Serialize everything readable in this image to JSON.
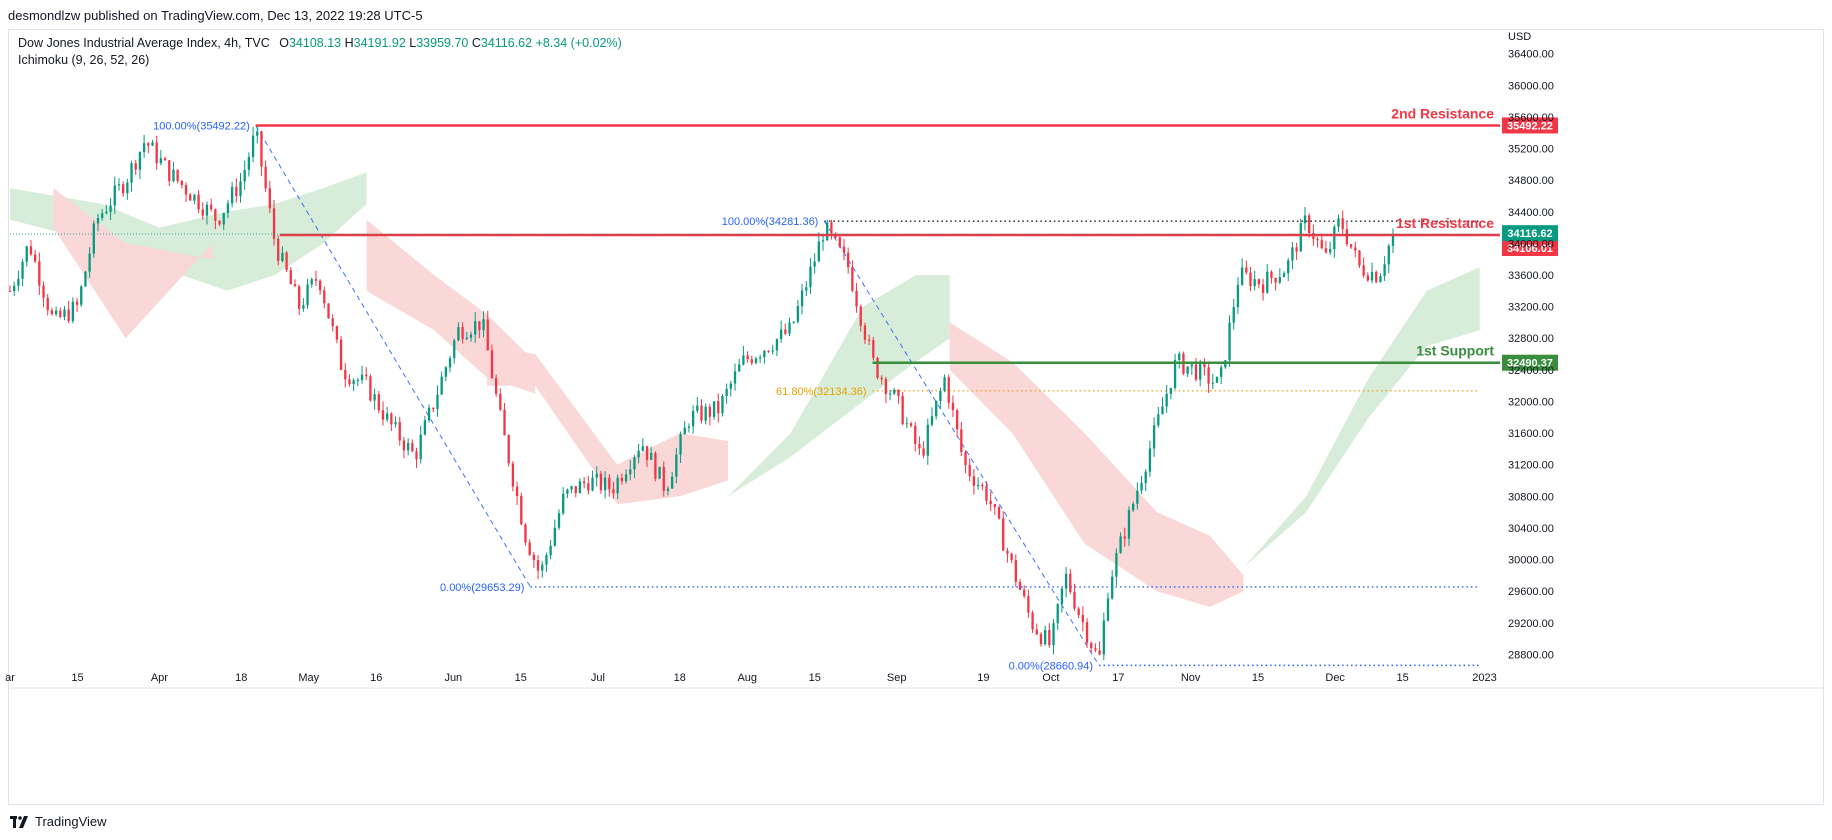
{
  "header": {
    "published": "desmondlzw published on TradingView.com, Dec 13, 2022 19:28 UTC-5"
  },
  "legend": {
    "symbol": "Dow Jones Industrial Average Index, 4h, TVC",
    "o_label": "O",
    "o_value": "34108.13",
    "h_label": "H",
    "h_value": "34191.92",
    "l_label": "L",
    "l_value": "33959.70",
    "c_label": "C",
    "c_value": "34116.62",
    "change": "+8.34 (+0.02%)",
    "indicator": "Ichimoku (9, 26, 52, 26)"
  },
  "footer": {
    "brand": "TradingView"
  },
  "colors": {
    "up": "#089981",
    "down": "#f23645",
    "cloud_up": "#d6ecd7",
    "cloud_down": "#fbd6d6",
    "resistance": "#f23645",
    "support": "#388e3c",
    "fib_blue": "#2962ff",
    "fib_orange": "#f5a623"
  },
  "chart_data": {
    "type": "candlestick",
    "title": "Dow Jones Industrial Average Index, 4h, TVC",
    "currency": "USD",
    "ylim": [
      28400,
      36700
    ],
    "y_ticks": [
      36400,
      36000,
      35600,
      35200,
      34800,
      34400,
      34000,
      33600,
      33200,
      32800,
      32400,
      32000,
      31600,
      31200,
      30800,
      30400,
      30000,
      29600,
      29200,
      28800
    ],
    "y_tick_labels": [
      "36400.00",
      "36000.00",
      "35600.00",
      "35200.00",
      "34800.00",
      "34400.00",
      "34000.00",
      "33600.00",
      "33200.00",
      "32800.00",
      "32400.00",
      "32000.00",
      "31600.00",
      "31200.00",
      "30800.00",
      "30400.00",
      "30000.00",
      "29600.00",
      "29200.00",
      "28800.00"
    ],
    "x_range": [
      "2022-03-01",
      "2023-01-04"
    ],
    "x_ticks": [
      {
        "date": "2022-03-01",
        "label": "ar"
      },
      {
        "date": "2022-03-15",
        "label": "15"
      },
      {
        "date": "2022-04-01",
        "label": "Apr"
      },
      {
        "date": "2022-04-18",
        "label": "18"
      },
      {
        "date": "2022-05-02",
        "label": "May"
      },
      {
        "date": "2022-05-16",
        "label": "16"
      },
      {
        "date": "2022-06-01",
        "label": "Jun"
      },
      {
        "date": "2022-06-15",
        "label": "15"
      },
      {
        "date": "2022-07-01",
        "label": "Jul"
      },
      {
        "date": "2022-07-18",
        "label": "18"
      },
      {
        "date": "2022-08-01",
        "label": "Aug"
      },
      {
        "date": "2022-08-15",
        "label": "15"
      },
      {
        "date": "2022-09-01",
        "label": "Sep"
      },
      {
        "date": "2022-09-19",
        "label": "19"
      },
      {
        "date": "2022-10-03",
        "label": "Oct"
      },
      {
        "date": "2022-10-17",
        "label": "17"
      },
      {
        "date": "2022-11-01",
        "label": "Nov"
      },
      {
        "date": "2022-11-15",
        "label": "15"
      },
      {
        "date": "2022-12-01",
        "label": "Dec"
      },
      {
        "date": "2022-12-15",
        "label": "15"
      },
      {
        "date": "2023-01-01",
        "label": "2023"
      }
    ],
    "price_path": [
      [
        "2022-03-01",
        33400
      ],
      [
        "2022-03-05",
        34000
      ],
      [
        "2022-03-10",
        33000
      ],
      [
        "2022-03-15",
        33200
      ],
      [
        "2022-03-19",
        34300
      ],
      [
        "2022-03-25",
        34800
      ],
      [
        "2022-03-29",
        35300
      ],
      [
        "2022-04-03",
        34900
      ],
      [
        "2022-04-08",
        34600
      ],
      [
        "2022-04-13",
        34300
      ],
      [
        "2022-04-18",
        34800
      ],
      [
        "2022-04-21",
        35400
      ],
      [
        "2022-04-25",
        34000
      ],
      [
        "2022-04-30",
        33200
      ],
      [
        "2022-05-04",
        33600
      ],
      [
        "2022-05-09",
        32400
      ],
      [
        "2022-05-14",
        32200
      ],
      [
        "2022-05-19",
        31700
      ],
      [
        "2022-05-24",
        31300
      ],
      [
        "2022-05-28",
        32000
      ],
      [
        "2022-06-02",
        32900
      ],
      [
        "2022-06-07",
        33000
      ],
      [
        "2022-06-11",
        31700
      ],
      [
        "2022-06-16",
        30300
      ],
      [
        "2022-06-19",
        29800
      ],
      [
        "2022-06-24",
        30800
      ],
      [
        "2022-06-29",
        31000
      ],
      [
        "2022-07-04",
        30900
      ],
      [
        "2022-07-10",
        31500
      ],
      [
        "2022-07-15",
        30900
      ],
      [
        "2022-07-20",
        31800
      ],
      [
        "2022-07-26",
        31900
      ],
      [
        "2022-07-31",
        32500
      ],
      [
        "2022-08-05",
        32700
      ],
      [
        "2022-08-10",
        32900
      ],
      [
        "2022-08-15",
        33800
      ],
      [
        "2022-08-17",
        34200
      ],
      [
        "2022-08-22",
        33700
      ],
      [
        "2022-08-27",
        32500
      ],
      [
        "2022-09-01",
        32000
      ],
      [
        "2022-09-06",
        31300
      ],
      [
        "2022-09-11",
        32300
      ],
      [
        "2022-09-15",
        31200
      ],
      [
        "2022-09-20",
        30800
      ],
      [
        "2022-09-25",
        29900
      ],
      [
        "2022-09-29",
        29200
      ],
      [
        "2022-10-03",
        28900
      ],
      [
        "2022-10-06",
        29800
      ],
      [
        "2022-10-09",
        29300
      ],
      [
        "2022-10-13",
        28700
      ],
      [
        "2022-10-15",
        29700
      ],
      [
        "2022-10-19",
        30500
      ],
      [
        "2022-10-24",
        31500
      ],
      [
        "2022-10-29",
        32500
      ],
      [
        "2022-11-02",
        32400
      ],
      [
        "2022-11-07",
        32200
      ],
      [
        "2022-11-11",
        33600
      ],
      [
        "2022-11-16",
        33500
      ],
      [
        "2022-11-21",
        33700
      ],
      [
        "2022-11-25",
        34300
      ],
      [
        "2022-11-29",
        33800
      ],
      [
        "2022-12-02",
        34300
      ],
      [
        "2022-12-06",
        33700
      ],
      [
        "2022-12-10",
        33600
      ],
      [
        "2022-12-13",
        34116
      ]
    ],
    "cloud": [
      {
        "dir": "up",
        "points": [
          [
            "2022-03-01",
            34700
          ],
          [
            "2022-03-20",
            34500
          ],
          [
            "2022-04-01",
            34200
          ],
          [
            "2022-04-15",
            34400
          ],
          [
            "2022-04-25",
            34500
          ],
          [
            "2022-05-05",
            34700
          ],
          [
            "2022-05-14",
            34900
          ]
        ],
        "lower": [
          [
            "2022-05-14",
            34500
          ],
          [
            "2022-05-05",
            34000
          ],
          [
            "2022-04-25",
            33600
          ],
          [
            "2022-04-15",
            33400
          ],
          [
            "2022-04-01",
            33700
          ],
          [
            "2022-03-20",
            34000
          ],
          [
            "2022-03-01",
            34300
          ]
        ]
      },
      {
        "dir": "down",
        "points": [
          [
            "2022-03-10",
            34700
          ],
          [
            "2022-03-25",
            34000
          ],
          [
            "2022-04-12",
            33800
          ],
          [
            "2022-04-12",
            34000
          ],
          [
            "2022-03-25",
            32800
          ],
          [
            "2022-03-10",
            34200
          ]
        ]
      },
      {
        "dir": "down",
        "points": [
          [
            "2022-05-14",
            34300
          ],
          [
            "2022-05-28",
            33600
          ],
          [
            "2022-06-08",
            33100
          ],
          [
            "2022-06-18",
            32500
          ],
          [
            "2022-06-18",
            32100
          ],
          [
            "2022-06-08",
            32300
          ],
          [
            "2022-05-28",
            32900
          ],
          [
            "2022-05-14",
            33400
          ]
        ]
      },
      {
        "dir": "down",
        "points": [
          [
            "2022-06-08",
            32700
          ],
          [
            "2022-06-18",
            32600
          ],
          [
            "2022-07-05",
            31200
          ],
          [
            "2022-07-18",
            31600
          ],
          [
            "2022-07-28",
            31500
          ],
          [
            "2022-07-28",
            31000
          ],
          [
            "2022-07-18",
            30800
          ],
          [
            "2022-07-05",
            30700
          ],
          [
            "2022-06-18",
            32200
          ],
          [
            "2022-06-08",
            32200
          ]
        ]
      },
      {
        "dir": "up",
        "points": [
          [
            "2022-07-28",
            30800
          ],
          [
            "2022-08-10",
            31600
          ],
          [
            "2022-08-25",
            33200
          ],
          [
            "2022-09-05",
            33600
          ],
          [
            "2022-09-12",
            33600
          ],
          [
            "2022-09-12",
            32800
          ],
          [
            "2022-09-05",
            32500
          ],
          [
            "2022-08-25",
            32000
          ],
          [
            "2022-08-10",
            31300
          ],
          [
            "2022-07-28",
            30800
          ]
        ]
      },
      {
        "dir": "down",
        "points": [
          [
            "2022-09-12",
            33000
          ],
          [
            "2022-09-25",
            32500
          ],
          [
            "2022-10-10",
            31600
          ],
          [
            "2022-10-25",
            30600
          ],
          [
            "2022-11-05",
            30300
          ],
          [
            "2022-11-12",
            29800
          ],
          [
            "2022-11-12",
            29600
          ],
          [
            "2022-11-05",
            29400
          ],
          [
            "2022-10-25",
            29600
          ],
          [
            "2022-10-10",
            30200
          ],
          [
            "2022-09-25",
            31600
          ],
          [
            "2022-09-12",
            32400
          ]
        ]
      },
      {
        "dir": "up",
        "points": [
          [
            "2022-11-12",
            29900
          ],
          [
            "2022-11-25",
            30800
          ],
          [
            "2022-12-08",
            32300
          ],
          [
            "2022-12-20",
            33400
          ],
          [
            "2022-12-31",
            33700
          ],
          [
            "2022-12-31",
            32900
          ],
          [
            "2022-12-20",
            32700
          ],
          [
            "2022-12-08",
            31800
          ],
          [
            "2022-11-25",
            30600
          ],
          [
            "2022-11-12",
            29900
          ]
        ]
      }
    ],
    "horizontal_levels": [
      {
        "label": "2nd Resistance",
        "value": 35492.22,
        "value_label": "35492.22",
        "start": "2022-04-21",
        "color": "resistance"
      },
      {
        "label": "1st Resistance",
        "value": 34106.01,
        "value_label": "34106.01",
        "start": "2022-04-26",
        "color": "resistance"
      },
      {
        "label": "1st Support",
        "value": 32490.37,
        "value_label": "32490.37",
        "start": "2022-08-27",
        "color": "support"
      }
    ],
    "last_price": {
      "value": 34116.62,
      "label": "34116.62"
    },
    "fib": [
      {
        "label": "100.00%(35492.22)",
        "value": 35492.22,
        "from": "2022-04-21",
        "to": "2022-04-21"
      },
      {
        "label": "0.00%(29653.29)",
        "value": 29653.29,
        "from": "2022-06-17",
        "to": "2022-12-31"
      },
      {
        "label": "100.00%(34281.36)",
        "value": 34281.36,
        "from": "2022-08-17",
        "to": "2022-12-31"
      },
      {
        "label": "61.80%(32134.36)",
        "value": 32134.36,
        "from": "2022-08-27",
        "to": "2022-12-31"
      },
      {
        "label": "0.00%(28660.94)",
        "value": 28660.94,
        "from": "2022-10-13",
        "to": "2022-12-31"
      }
    ],
    "trend_lines": [
      {
        "from": [
          "2022-04-21",
          35492
        ],
        "to": [
          "2022-06-17",
          29653
        ]
      },
      {
        "from": [
          "2022-08-17",
          34281
        ],
        "to": [
          "2022-10-13",
          28661
        ]
      }
    ]
  }
}
